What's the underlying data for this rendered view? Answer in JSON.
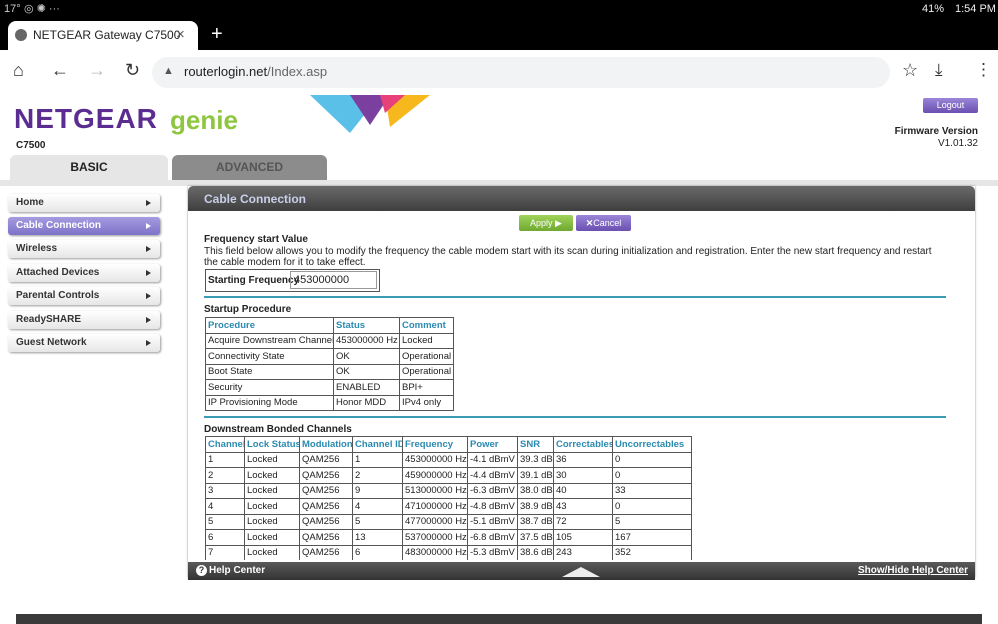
{
  "status_bar": {
    "temperature": "17°",
    "battery": "41%",
    "time": "1:54 PM"
  },
  "browser": {
    "tab_title": "NETGEAR Gateway C7500",
    "url_host": "routerlogin.net",
    "url_path": "/Index.asp"
  },
  "header": {
    "logo_brand": "NETGEAR",
    "logo_product": "genie",
    "model": "C7500",
    "logout": "Logout",
    "firmware_label": "Firmware Version",
    "firmware_version": "V1.01.32"
  },
  "tabs": [
    "BASIC",
    "ADVANCED"
  ],
  "menu": [
    "Home",
    "Cable Connection",
    "Wireless",
    "Attached Devices",
    "Parental Controls",
    "ReadySHARE",
    "Guest Network"
  ],
  "panel": {
    "title": "Cable Connection",
    "apply": "Apply",
    "cancel": "Cancel",
    "frequency": {
      "heading": "Frequency start Value",
      "description": "This field below allows you to modify the frequency the cable modem start with its scan during initialization and registration. Enter the new start frequency and restart the cable modem for it to take effect.",
      "label": "Starting Frequency",
      "value": "453000000"
    },
    "startup": {
      "heading": "Startup Procedure",
      "columns": [
        "Procedure",
        "Status",
        "Comment"
      ],
      "rows": [
        [
          "Acquire Downstream Channel",
          "453000000 Hz",
          "Locked"
        ],
        [
          "Connectivity State",
          "OK",
          "Operational"
        ],
        [
          "Boot State",
          "OK",
          "Operational"
        ],
        [
          "Security",
          "ENABLED",
          "BPI+"
        ],
        [
          "IP Provisioning Mode",
          "Honor MDD",
          "IPv4 only"
        ]
      ]
    },
    "downstream": {
      "heading": "Downstream Bonded Channels",
      "columns": [
        "Channel",
        "Lock Status",
        "Modulation",
        "Channel ID",
        "Frequency",
        "Power",
        "SNR",
        "Correctables",
        "Uncorrectables"
      ],
      "rows": [
        [
          "1",
          "Locked",
          "QAM256",
          "1",
          "453000000 Hz",
          "-4.1 dBmV",
          "39.3 dB",
          "36",
          "0"
        ],
        [
          "2",
          "Locked",
          "QAM256",
          "2",
          "459000000 Hz",
          "-4.4 dBmV",
          "39.1 dB",
          "30",
          "0"
        ],
        [
          "3",
          "Locked",
          "QAM256",
          "9",
          "513000000 Hz",
          "-6.3 dBmV",
          "38.0 dB",
          "40",
          "33"
        ],
        [
          "4",
          "Locked",
          "QAM256",
          "4",
          "471000000 Hz",
          "-4.8 dBmV",
          "38.9 dB",
          "43",
          "0"
        ],
        [
          "5",
          "Locked",
          "QAM256",
          "5",
          "477000000 Hz",
          "-5.1 dBmV",
          "38.7 dB",
          "72",
          "5"
        ],
        [
          "6",
          "Locked",
          "QAM256",
          "13",
          "537000000 Hz",
          "-6.8 dBmV",
          "37.5 dB",
          "105",
          "167"
        ],
        [
          "7",
          "Locked",
          "QAM256",
          "6",
          "483000000 Hz",
          "-5.3 dBmV",
          "38.6 dB",
          "243",
          "352"
        ]
      ]
    }
  },
  "footer": {
    "help": "Help Center",
    "toggle": "Show/Hide Help Center"
  }
}
